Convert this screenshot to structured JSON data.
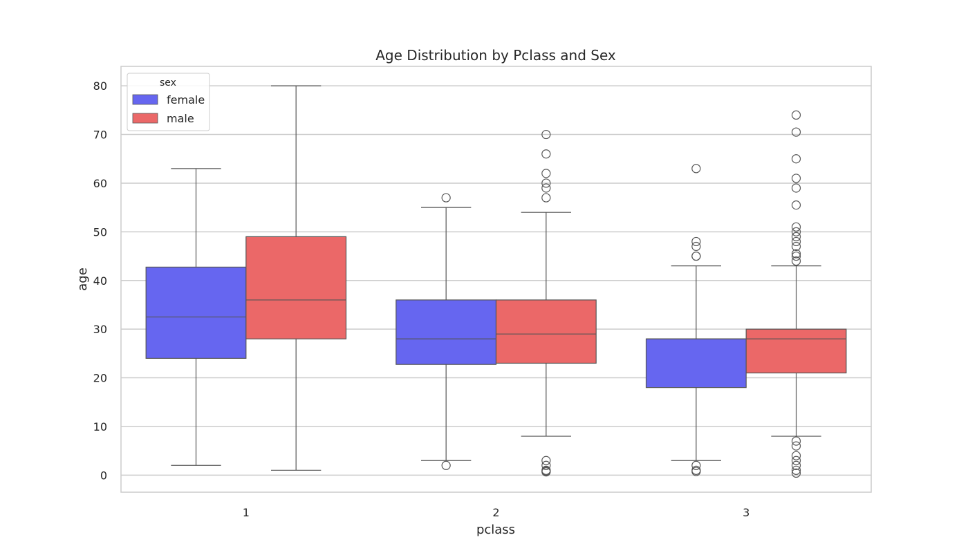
{
  "chart_data": {
    "type": "box",
    "title": "Age Distribution by Pclass and Sex",
    "xlabel": "pclass",
    "ylabel": "age",
    "categories": [
      "1",
      "2",
      "3"
    ],
    "ylim": [
      -3.5,
      84
    ],
    "yticks": [
      0,
      10,
      20,
      30,
      40,
      50,
      60,
      70,
      80
    ],
    "grid": true,
    "legend": {
      "title": "sex",
      "placement": "top-left",
      "entries": [
        "female",
        "male"
      ]
    },
    "series": [
      {
        "name": "female",
        "color": "#6666f0",
        "boxes": [
          {
            "category": "1",
            "whisker_low": 2,
            "q1": 24,
            "median": 32.5,
            "q3": 42.75,
            "whisker_high": 63,
            "outliers": []
          },
          {
            "category": "2",
            "whisker_low": 3,
            "q1": 22.75,
            "median": 28,
            "q3": 36,
            "whisker_high": 55,
            "outliers": [
              2,
              57
            ]
          },
          {
            "category": "3",
            "whisker_low": 3,
            "q1": 18,
            "median": 28,
            "q3": 28,
            "whisker_high": 43,
            "outliers": [
              0.75,
              1,
              2,
              45,
              45,
              47,
              48,
              63
            ]
          }
        ]
      },
      {
        "name": "male",
        "color": "#eb6868",
        "boxes": [
          {
            "category": "1",
            "whisker_low": 1,
            "q1": 28,
            "median": 36,
            "q3": 49,
            "whisker_high": 80,
            "outliers": []
          },
          {
            "category": "2",
            "whisker_low": 8,
            "q1": 23,
            "median": 29,
            "q3": 36,
            "whisker_high": 54,
            "outliers": [
              0.67,
              0.83,
              1,
              2,
              3,
              57,
              59,
              60,
              62,
              66,
              70
            ]
          },
          {
            "category": "3",
            "whisker_low": 8,
            "q1": 21,
            "median": 28,
            "q3": 30,
            "whisker_high": 43,
            "outliers": [
              0.42,
              1,
              2,
              3,
              4,
              6,
              7,
              44,
              45,
              45.5,
              47,
              48,
              49,
              50,
              51,
              55.5,
              59,
              61,
              65,
              70.5,
              74
            ]
          }
        ]
      }
    ]
  }
}
